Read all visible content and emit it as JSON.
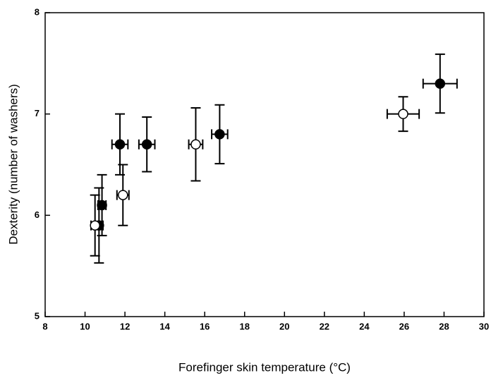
{
  "chart_data": {
    "type": "scatter",
    "xlabel": "Forefinger skin temperature (°C)",
    "ylabel": "Dexterity (number of washers)",
    "xlim": [
      8,
      30
    ],
    "xticks": [
      8,
      10,
      12,
      14,
      16,
      18,
      20,
      22,
      24,
      26,
      28,
      30
    ],
    "ylim": [
      5,
      8
    ],
    "yticks": [
      5,
      6,
      7,
      8
    ],
    "series": [
      {
        "color": "#000000",
        "fill": "#000000",
        "x": [
          10.85,
          10.7,
          11.75,
          13.1,
          16.75,
          27.8
        ],
        "values": [
          6.1,
          5.9,
          6.7,
          6.7,
          6.8,
          7.3
        ],
        "xerr": [
          0.2,
          0.2,
          0.4,
          0.4,
          0.4,
          0.85
        ],
        "yerr": [
          0.3,
          0.37,
          0.3,
          0.27,
          0.29,
          0.29
        ]
      },
      {
        "color": "#000000",
        "fill": "#ffffff",
        "x": [
          10.5,
          11.9,
          15.55,
          25.95
        ],
        "values": [
          5.9,
          6.2,
          6.7,
          7.0
        ],
        "xerr": [
          0.2,
          0.3,
          0.35,
          0.8
        ],
        "yerr": [
          0.3,
          0.3,
          0.36,
          0.17
        ]
      }
    ]
  }
}
